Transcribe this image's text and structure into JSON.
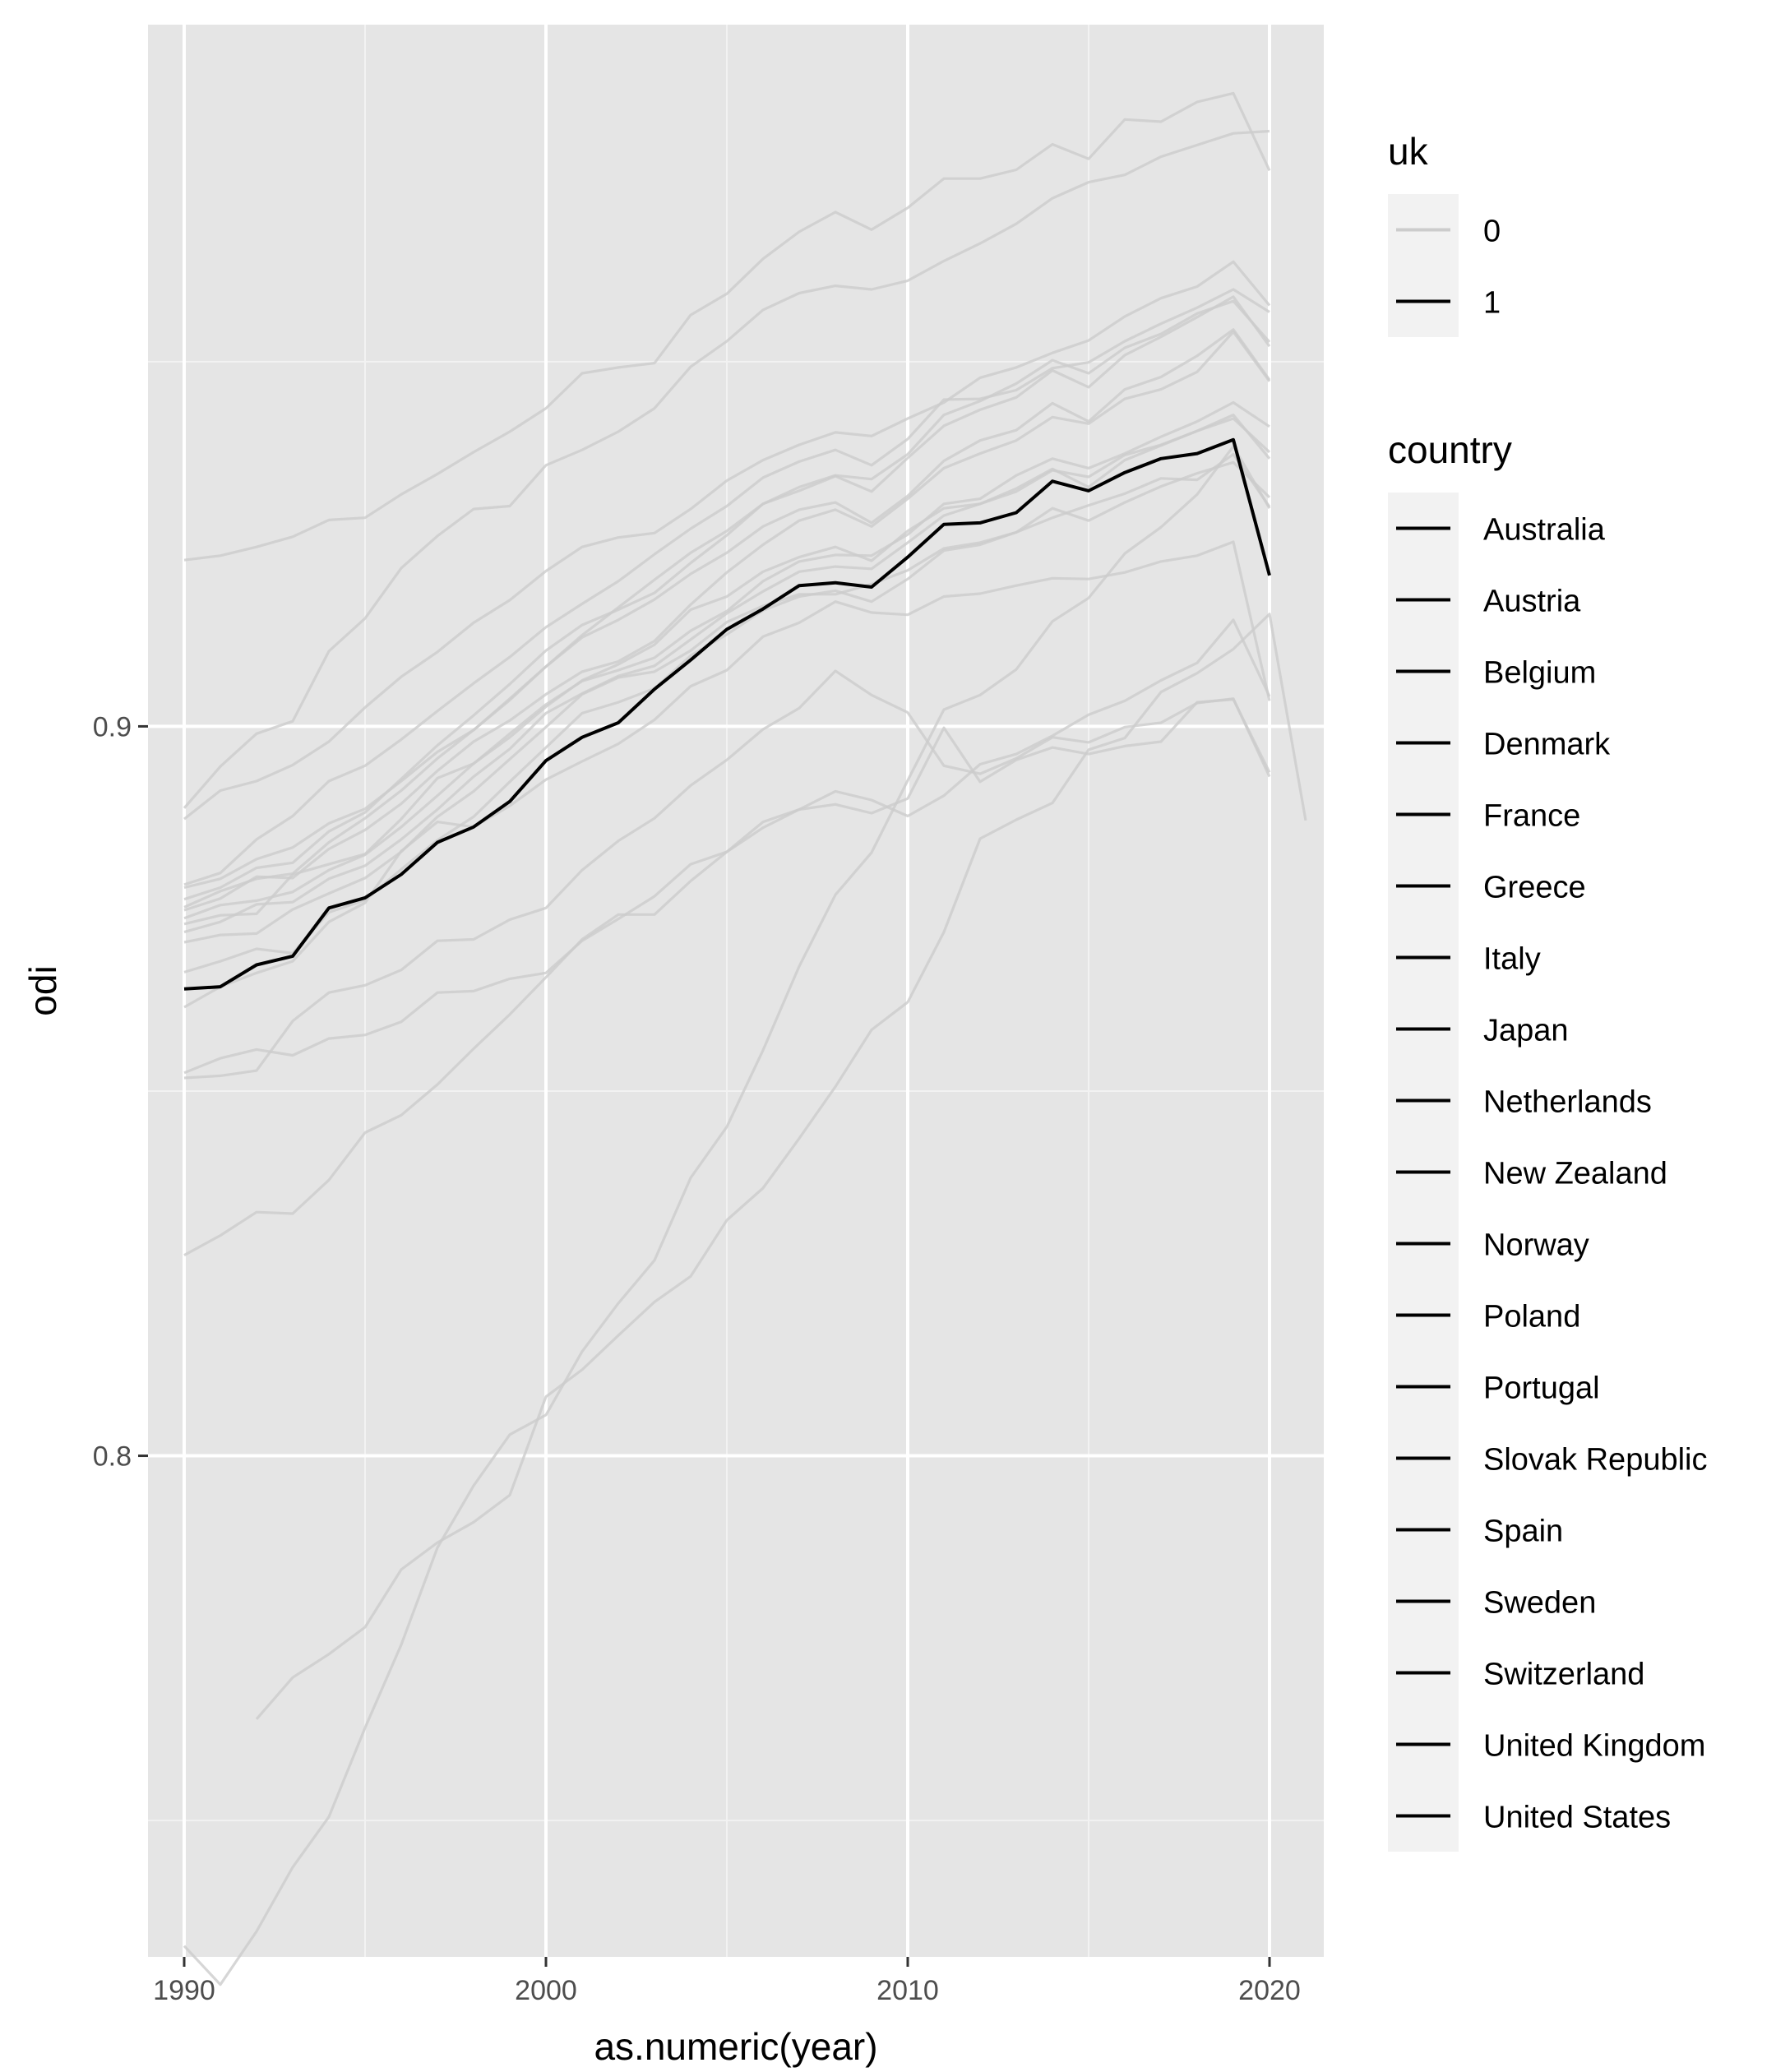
{
  "chart_data": {
    "type": "line",
    "xlabel": "as.numeric(year)",
    "ylabel": "odi",
    "xlim": [
      1989,
      2021.5
    ],
    "ylim": [
      0.7313,
      0.9962
    ],
    "x_ticks": [
      1990,
      2000,
      2010,
      2020
    ],
    "x_tick_labels": [
      "1990",
      "2000",
      "2010",
      "2020"
    ],
    "y_ticks": [
      0.8,
      0.9
    ],
    "y_tick_labels": [
      "0.8",
      "0.9"
    ],
    "panel_background": "#e5e5e5",
    "grid": true,
    "legend_position": "right",
    "uk_legend": {
      "title": "uk",
      "entries": [
        {
          "label": "0",
          "color": "#cccccc"
        },
        {
          "label": "1",
          "color": "#000000"
        }
      ]
    },
    "country_legend": {
      "title": "country",
      "entries": [
        "Australia",
        "Austria",
        "Belgium",
        "Denmark",
        "France",
        "Greece",
        "Italy",
        "Japan",
        "Netherlands",
        "New Zealand",
        "Norway",
        "Poland",
        "Portugal",
        "Slovak Republic",
        "Spain",
        "Sweden",
        "Switzerland",
        "United Kingdom",
        "United States"
      ]
    },
    "highlight_series": {
      "name": "United Kingdom",
      "uk": 1,
      "color": "#000000",
      "x_start": 1990,
      "values": [
        0.864,
        0.8643,
        0.8673,
        0.8685,
        0.8751,
        0.8765,
        0.8797,
        0.8841,
        0.8862,
        0.8897,
        0.8953,
        0.8985,
        0.9005,
        0.9051,
        0.9091,
        0.9133,
        0.9161,
        0.9193,
        0.9197,
        0.9191,
        0.9232,
        0.9277,
        0.9279,
        0.9293,
        0.9336,
        0.9323,
        0.9348,
        0.9367,
        0.9374,
        0.9393,
        0.9207
      ]
    },
    "series": [
      {
        "x_start": 1990,
        "values": [
          0.9228,
          0.9234,
          0.9246,
          0.926,
          0.9283,
          0.9286,
          0.9318,
          0.9346,
          0.9376,
          0.9404,
          0.9436,
          0.9484,
          0.9492,
          0.9498,
          0.9564,
          0.9593,
          0.9641,
          0.9678,
          0.9705,
          0.9681,
          0.9711,
          0.9751,
          0.9751,
          0.9763,
          0.9798,
          0.9778,
          0.9832,
          0.9829,
          0.9856,
          0.9868,
          0.9762
        ]
      },
      {
        "x_start": 1990,
        "values": [
          0.8888,
          0.8945,
          0.899,
          0.9007,
          0.9103,
          0.9148,
          0.9217,
          0.9261,
          0.9298,
          0.9302,
          0.9358,
          0.9379,
          0.9404,
          0.9436,
          0.9493,
          0.9528,
          0.9571,
          0.9594,
          0.9604,
          0.9599,
          0.9611,
          0.9638,
          0.9662,
          0.9689,
          0.9724,
          0.9746,
          0.9756,
          0.9781,
          0.9797,
          0.9813,
          0.9816
        ]
      },
      {
        "x_start": 1990,
        "values": [
          0.8873,
          0.8912,
          0.8925,
          0.8947,
          0.8979,
          0.9026,
          0.9068,
          0.9102,
          0.9142,
          0.9173,
          0.9213,
          0.9246,
          0.9259,
          0.9265,
          0.9298,
          0.9337,
          0.9365,
          0.9386,
          0.9403,
          0.9398,
          0.9422,
          0.9444,
          0.9478,
          0.9492,
          0.9512,
          0.9529,
          0.9562,
          0.9587,
          0.9603,
          0.9637,
          0.9577
        ]
      },
      {
        "x_start": 1990,
        "values": [
          0.8783,
          0.8799,
          0.8845,
          0.8877,
          0.8925,
          0.8946,
          0.8982,
          0.9021,
          0.9059,
          0.9095,
          0.9136,
          0.9168,
          0.9199,
          0.9236,
          0.9271,
          0.9302,
          0.9341,
          0.9363,
          0.9379,
          0.9358,
          0.9394,
          0.9448,
          0.9449,
          0.9461,
          0.9491,
          0.9499,
          0.9528,
          0.9552,
          0.9574,
          0.9599,
          0.9568
        ]
      },
      {
        "x_start": 1990,
        "values": [
          0.8779,
          0.8791,
          0.8818,
          0.8834,
          0.8867,
          0.8887,
          0.8925,
          0.8965,
          0.8995,
          0.9038,
          0.9082,
          0.9125,
          0.9163,
          0.9201,
          0.9238,
          0.9268,
          0.9305,
          0.9323,
          0.9343,
          0.9322,
          0.9368,
          0.9412,
          0.9434,
          0.9451,
          0.9488,
          0.9465,
          0.9509,
          0.9534,
          0.9561,
          0.9589,
          0.9521
        ]
      },
      {
        "x_start": 1990,
        "values": [
          0.8763,
          0.8779,
          0.8806,
          0.8813,
          0.8856,
          0.8882,
          0.8928,
          0.8974,
          0.9015,
          0.9058,
          0.9104,
          0.9139,
          0.916,
          0.9183,
          0.9224,
          0.9262,
          0.9305,
          0.9328,
          0.9344,
          0.9339,
          0.9373,
          0.9427,
          0.9446,
          0.947,
          0.9502,
          0.9484,
          0.9519,
          0.9538,
          0.9566,
          0.9583,
          0.9527
        ]
      },
      {
        "x_start": 1990,
        "values": [
          0.8752,
          0.8774,
          0.8791,
          0.8798,
          0.8841,
          0.8874,
          0.8912,
          0.8956,
          0.8995,
          0.9036,
          0.9082,
          0.9122,
          0.9146,
          0.9174,
          0.9209,
          0.9238,
          0.9274,
          0.9297,
          0.9307,
          0.9279,
          0.9316,
          0.9364,
          0.9392,
          0.9406,
          0.9443,
          0.9418,
          0.9462,
          0.9479,
          0.9508,
          0.9544,
          0.9475
        ]
      },
      {
        "x_start": 1990,
        "values": [
          0.8748,
          0.8764,
          0.8794,
          0.8792,
          0.8832,
          0.8858,
          0.8894,
          0.8939,
          0.8979,
          0.9008,
          0.9044,
          0.9075,
          0.9089,
          0.9117,
          0.9167,
          0.9211,
          0.9249,
          0.9282,
          0.9297,
          0.9274,
          0.9312,
          0.9354,
          0.9374,
          0.9392,
          0.9424,
          0.9415,
          0.9449,
          0.9462,
          0.9486,
          0.9541,
          0.9473
        ]
      },
      {
        "x_start": 1990,
        "values": [
          0.8737,
          0.8755,
          0.8761,
          0.8773,
          0.8803,
          0.8824,
          0.8862,
          0.8905,
          0.8949,
          0.899,
          0.903,
          0.9062,
          0.9077,
          0.9094,
          0.9131,
          0.9158,
          0.9199,
          0.9226,
          0.9235,
          0.9234,
          0.9263,
          0.9305,
          0.9312,
          0.9344,
          0.9367,
          0.9354,
          0.9374,
          0.9397,
          0.9418,
          0.9444,
          0.9411
        ]
      },
      {
        "x_start": 1990,
        "values": [
          0.8718,
          0.8732,
          0.8756,
          0.8759,
          0.8791,
          0.8809,
          0.8845,
          0.8886,
          0.8931,
          0.8969,
          0.9018,
          0.9045,
          0.9069,
          0.9083,
          0.9119,
          0.9155,
          0.9185,
          0.9212,
          0.9219,
          0.9216,
          0.9252,
          0.9289,
          0.9305,
          0.9322,
          0.9351,
          0.9342,
          0.9372,
          0.9386,
          0.9405,
          0.9427,
          0.9367
        ]
      },
      {
        "x_start": 1990,
        "values": [
          0.8729,
          0.8741,
          0.8743,
          0.8797,
          0.8811,
          0.8825,
          0.8873,
          0.8929,
          0.8949,
          0.8985,
          0.9027,
          0.9063,
          0.9085,
          0.9112,
          0.916,
          0.9178,
          0.9212,
          0.9232,
          0.9246,
          0.9227,
          0.9268,
          0.9299,
          0.9305,
          0.9326,
          0.9353,
          0.9328,
          0.9365,
          0.9385,
          0.9405,
          0.9422,
          0.9376
        ]
      },
      {
        "x_start": 1990,
        "values": [
          0.8704,
          0.8714,
          0.8716,
          0.8749,
          0.8771,
          0.8792,
          0.8828,
          0.8876,
          0.8911,
          0.8955,
          0.8999,
          0.9044,
          0.9067,
          0.9075,
          0.9104,
          0.9143,
          0.9165,
          0.9181,
          0.9181,
          0.9195,
          0.9214,
          0.9244,
          0.9252,
          0.9266,
          0.9286,
          0.9303,
          0.9319,
          0.934,
          0.9338,
          0.9373,
          0.9301
        ]
      },
      {
        "x_start": 1990,
        "values": [
          0.8663,
          0.8678,
          0.8695,
          0.8689,
          0.8745,
          0.8762,
          0.8804,
          0.8844,
          0.8876,
          0.8924,
          0.8971,
          0.9018,
          0.9033,
          0.9052,
          0.9097,
          0.9126,
          0.9159,
          0.9178,
          0.9186,
          0.9171,
          0.9202,
          0.9241,
          0.9249,
          0.9266,
          0.9299,
          0.9282,
          0.9307,
          0.9329,
          0.9347,
          0.9362,
          0.9314
        ]
      },
      {
        "x_start": 1990,
        "values": [
          0.8615,
          0.8643,
          0.8662,
          0.8678,
          0.8732,
          0.8758,
          0.8829,
          0.8869,
          0.8862,
          0.8891,
          0.8927,
          0.8952,
          0.8976,
          0.9009,
          0.9055,
          0.9077,
          0.9123,
          0.9142,
          0.9171,
          0.9156,
          0.9153,
          0.9178,
          0.9182,
          0.9193,
          0.9203,
          0.9202,
          0.9211,
          0.9226,
          0.9234,
          0.9253,
          0.9035
        ]
      },
      {
        "x_start": 1990,
        "values": [
          0.8525,
          0.8545,
          0.8557,
          0.8549,
          0.8572,
          0.8577,
          0.8595,
          0.8635,
          0.8637,
          0.8654,
          0.8662,
          0.8706,
          0.8736,
          0.8767,
          0.8811,
          0.8828,
          0.8861,
          0.8886,
          0.8911,
          0.8899,
          0.8877,
          0.8905,
          0.8948,
          0.8962,
          0.8987,
          0.9016,
          0.9035,
          0.9063,
          0.9087,
          0.9146,
          0.9041
        ]
      },
      {
        "x_start": 1990,
        "values": [
          0.8518,
          0.8521,
          0.8528,
          0.8596,
          0.8635,
          0.8645,
          0.8666,
          0.8706,
          0.8708,
          0.8735,
          0.8751,
          0.8803,
          0.8843,
          0.8874,
          0.8919,
          0.8954,
          0.8996,
          0.9025,
          0.9076,
          0.9043,
          0.9019,
          0.8946,
          0.8935,
          0.8956,
          0.8985,
          0.8978,
          0.8999,
          0.9005,
          0.9032,
          0.9038,
          0.8931
        ]
      },
      {
        "x_start": 1990,
        "values": [
          0.8275,
          0.8302,
          0.8334,
          0.8332,
          0.8378,
          0.8443,
          0.8467,
          0.8509,
          0.8558,
          0.8605,
          0.8656,
          0.8708,
          0.8742,
          0.8742,
          0.8788,
          0.8828,
          0.8869,
          0.8886,
          0.8893,
          0.8881,
          0.8901,
          0.8998,
          0.8924,
          0.8954,
          0.8971,
          0.8962,
          0.8973,
          0.8979,
          0.9033,
          0.9037,
          0.8937
        ]
      },
      {
        "x_start": 1992,
        "values": [
          0.7639,
          0.7696,
          0.7728,
          0.7765,
          0.7844,
          0.7881,
          0.7909,
          0.7946,
          0.8081,
          0.8118,
          0.8165,
          0.8211,
          0.8246,
          0.8323,
          0.8367,
          0.8435,
          0.8506,
          0.8584,
          0.8622,
          0.8718,
          0.8846,
          0.8872,
          0.8895,
          0.8968,
          0.8984,
          0.9047,
          0.9073,
          0.9106,
          0.9154,
          0.8871
        ]
      },
      {
        "x_start": 1990,
        "values": [
          0.7328,
          0.7275,
          0.7348,
          0.7436,
          0.7505,
          0.7627,
          0.7741,
          0.7874,
          0.7959,
          0.8029,
          0.8056,
          0.8143,
          0.8209,
          0.8268,
          0.8381,
          0.8451,
          0.8556,
          0.8671,
          0.8769,
          0.8827,
          0.8926,
          0.9023,
          0.9043,
          0.9078,
          0.9144,
          0.9176,
          0.9237,
          0.9273,
          0.9318,
          0.9384,
          0.9299
        ]
      }
    ]
  }
}
